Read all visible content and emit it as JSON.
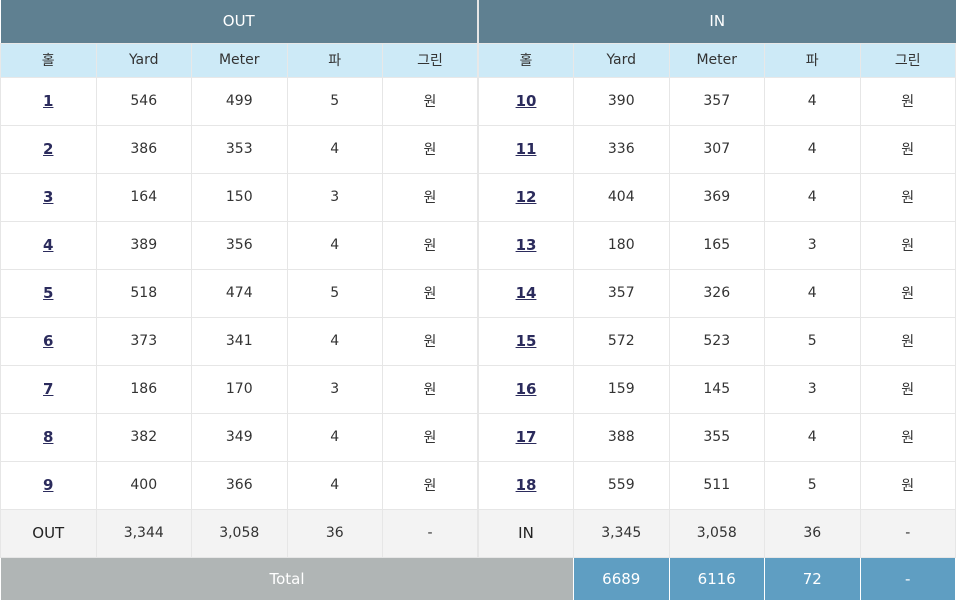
{
  "header": {
    "out": "OUT",
    "in": "IN"
  },
  "columns": [
    "홀",
    "Yard",
    "Meter",
    "파",
    "그린"
  ],
  "out_rows": [
    [
      "1",
      "546",
      "499",
      "5",
      "원"
    ],
    [
      "2",
      "386",
      "353",
      "4",
      "원"
    ],
    [
      "3",
      "164",
      "150",
      "3",
      "원"
    ],
    [
      "4",
      "389",
      "356",
      "4",
      "원"
    ],
    [
      "5",
      "518",
      "474",
      "5",
      "원"
    ],
    [
      "6",
      "373",
      "341",
      "4",
      "원"
    ],
    [
      "7",
      "186",
      "170",
      "3",
      "원"
    ],
    [
      "8",
      "382",
      "349",
      "4",
      "원"
    ],
    [
      "9",
      "400",
      "366",
      "4",
      "원"
    ]
  ],
  "in_rows": [
    [
      "10",
      "390",
      "357",
      "4",
      "원"
    ],
    [
      "11",
      "336",
      "307",
      "4",
      "원"
    ],
    [
      "12",
      "404",
      "369",
      "4",
      "원"
    ],
    [
      "13",
      "180",
      "165",
      "3",
      "원"
    ],
    [
      "14",
      "357",
      "326",
      "4",
      "원"
    ],
    [
      "15",
      "572",
      "523",
      "5",
      "원"
    ],
    [
      "16",
      "159",
      "145",
      "3",
      "원"
    ],
    [
      "17",
      "388",
      "355",
      "4",
      "원"
    ],
    [
      "18",
      "559",
      "511",
      "5",
      "원"
    ]
  ],
  "out_sum": [
    "OUT",
    "3,344",
    "3,058",
    "36",
    "-"
  ],
  "in_sum": [
    "IN",
    "3,345",
    "3,058",
    "36",
    "-"
  ],
  "total": {
    "label": "Total",
    "yard": "6689",
    "meter": "6116",
    "par": "72",
    "green": "-"
  }
}
